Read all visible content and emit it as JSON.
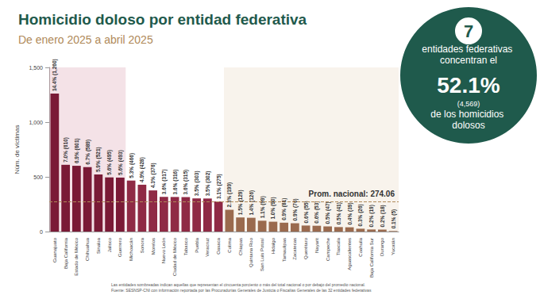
{
  "chart_data": {
    "type": "bar",
    "title": "Homicidio doloso por entidad federativa",
    "subtitle": "De enero 2025 a abril 2025",
    "y_label": "Núm. de víctimas",
    "categories": [
      "Guanajuato",
      "Baja California",
      "Estado de México",
      "Chihuahua",
      "Sinaloa",
      "Jalisco",
      "Guerrero",
      "Michoacán",
      "Sonora",
      "Morelos",
      "Nuevo León",
      "Ciudad de México",
      "Tabasco",
      "Puebla",
      "Veracruz",
      "Oaxaca",
      "Colima",
      "Chiapas",
      "Quintana Roo",
      "San Luis Potosí",
      "Hidalgo",
      "Tamaulipas",
      "Zacatecas",
      "Querétaro",
      "Nayarit",
      "Campeche",
      "Tlaxcala",
      "Aguascalientes",
      "Coahuila",
      "Baja California Sur",
      "Durango",
      "Yucatán"
    ],
    "values": [
      1260,
      610,
      601,
      589,
      521,
      495,
      493,
      466,
      428,
      376,
      317,
      316,
      315,
      303,
      302,
      275,
      199,
      129,
      126,
      99,
      90,
      81,
      76,
      55,
      53,
      47,
      41,
      39,
      26,
      19,
      18,
      5
    ],
    "value_labels": [
      "14.4% (1,260)",
      "7.0% (610)",
      "6.9% (601)",
      "6.7% (589)",
      "5.9% (521)",
      "5.6% (495)",
      "5.6% (493)",
      "5.3% (466)",
      "4.9% (428)",
      "4.3% (376)",
      "3.6% (317)",
      "3.6% (316)",
      "3.6% (315)",
      "3.5% (303)",
      "3.5% (302)",
      "3.1% (275)",
      "2.3% (199)",
      "1.5% (129)",
      "1.4% (126)",
      "1.1% (99)",
      "1.0% (90)",
      "0.9% (81)",
      "0.9% (76)",
      "0.6% (55)",
      "0.6% (53)",
      "0.5% (47)",
      "0.5% (41)",
      "0.4% (39)",
      "0.3% (26)",
      "0.2% (19)",
      "0.2% (18)",
      "0.1% (5)"
    ],
    "colors": [
      "#7a1a36",
      "#7a1a36",
      "#7a1a36",
      "#7a1a36",
      "#7a1a36",
      "#7a1a36",
      "#7a1a36",
      "#8f2a45",
      "#8f2a45",
      "#8f2a45",
      "#8f2a45",
      "#8f2a45",
      "#8f2a45",
      "#8f2a45",
      "#8f2a45",
      "#8f2a45",
      "#9a6a4e",
      "#9a6a4e",
      "#9a6a4e",
      "#9a6a4e",
      "#9a6a4e",
      "#9a6a4e",
      "#9a6a4e",
      "#9a6a4e",
      "#9a6a4e",
      "#9a6a4e",
      "#9a6a4e",
      "#9a6a4e",
      "#9a6a4e",
      "#9a6a4e",
      "#9a6a4e",
      "#9a6a4e"
    ],
    "ylim": [
      0,
      1500
    ],
    "yticks": [
      0,
      500,
      {
        "value": 1000,
        "label": "1,000"
      },
      {
        "value": 1500,
        "label": "1,500"
      }
    ],
    "grid": false,
    "data_labels": true,
    "average": {
      "value": 274.06,
      "label": "Prom. nacional: 274.06"
    },
    "callout": {
      "number": "7",
      "text": "entidades federativas concentran el",
      "percent": "52.1%",
      "count": "(4,569)",
      "closing": "de los homicidios dolosos"
    },
    "footnotes": [
      "Las entidades sombreadas indican aquellas que representan el cincuenta porciento o más del total nacional o por debajo del promedio nacional.",
      "Fuente: SESNSP-CNI con información reportada por las Procuradurías Generales de Justicia o Fiscalías Generales de las 32 entidades federativas"
    ]
  }
}
